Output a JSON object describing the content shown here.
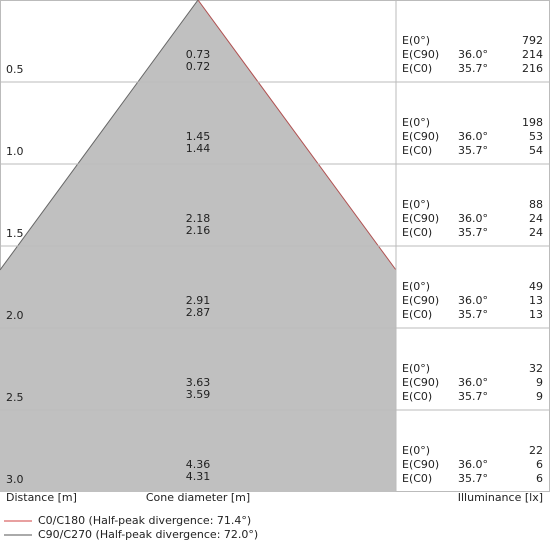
{
  "labels": {
    "e0": "E(0°)",
    "ec90": "E(C90)",
    "ec0": "E(C0)"
  },
  "rows": [
    {
      "distance": "0.5",
      "diameter_c0": "0.73",
      "diameter_c90": "0.72",
      "e0": "792",
      "c90_angle": "36.0°",
      "c90_value": "214",
      "c0_angle": "35.7°",
      "c0_value": "216"
    },
    {
      "distance": "1.0",
      "diameter_c0": "1.45",
      "diameter_c90": "1.44",
      "e0": "198",
      "c90_angle": "36.0°",
      "c90_value": "53",
      "c0_angle": "35.7°",
      "c0_value": "54"
    },
    {
      "distance": "1.5",
      "diameter_c0": "2.18",
      "diameter_c90": "2.16",
      "e0": "88",
      "c90_angle": "36.0°",
      "c90_value": "24",
      "c0_angle": "35.7°",
      "c0_value": "24"
    },
    {
      "distance": "2.0",
      "diameter_c0": "2.91",
      "diameter_c90": "2.87",
      "e0": "49",
      "c90_angle": "36.0°",
      "c90_value": "13",
      "c0_angle": "35.7°",
      "c0_value": "13"
    },
    {
      "distance": "2.5",
      "diameter_c0": "3.63",
      "diameter_c90": "3.59",
      "e0": "32",
      "c90_angle": "36.0°",
      "c90_value": "9",
      "c0_angle": "35.7°",
      "c0_value": "9"
    },
    {
      "distance": "3.0",
      "diameter_c0": "4.36",
      "diameter_c90": "4.31",
      "e0": "22",
      "c90_angle": "36.0°",
      "c90_value": "6",
      "c0_angle": "35.7°",
      "c0_value": "6"
    }
  ],
  "footer": {
    "distance": "Distance [m]",
    "diameter": "Cone diameter [m]",
    "illuminance": "Illuminance [lx]"
  },
  "legend": [
    "C0/C180 (Half-peak divergence: 71.4°)",
    "C90/C270 (Half-peak divergence: 72.0°)"
  ]
}
